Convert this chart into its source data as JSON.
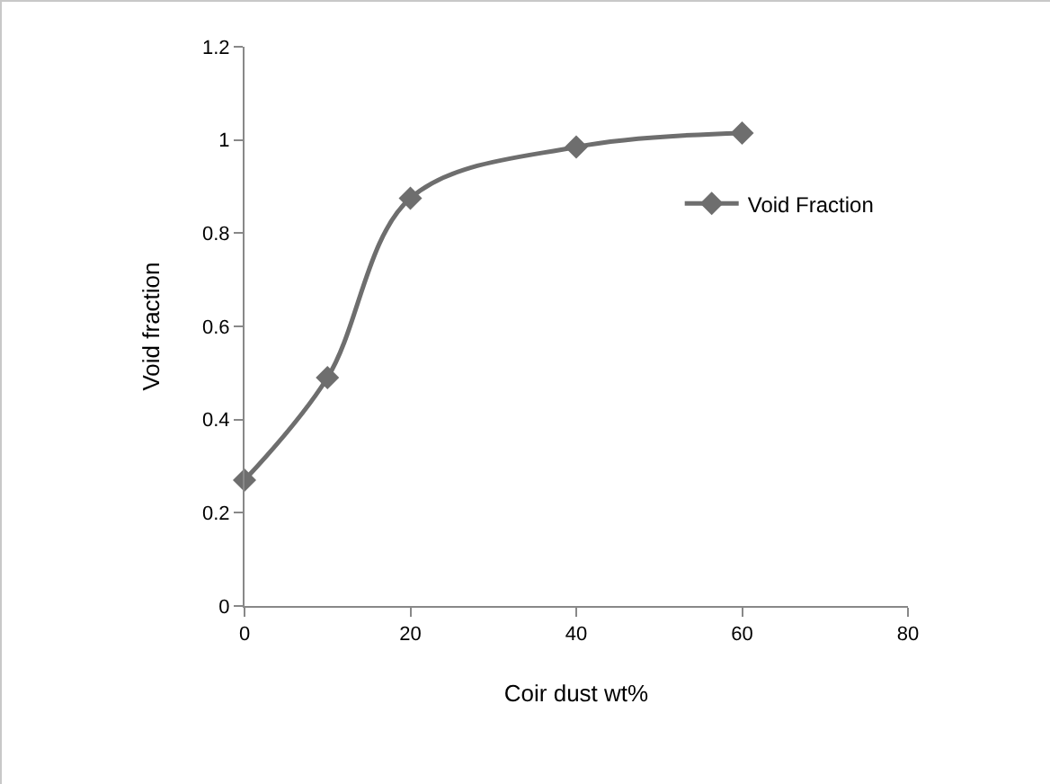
{
  "chart_data": {
    "type": "line",
    "xlabel": "Coir dust wt%",
    "ylabel": "Void fraction",
    "x": [
      0,
      10,
      20,
      40,
      60
    ],
    "series": [
      {
        "name": "Void Fraction",
        "color": "#6e6e6e",
        "values": [
          0.27,
          0.49,
          0.875,
          0.985,
          1.015
        ]
      }
    ],
    "xlim": [
      0,
      80
    ],
    "xticks": [
      0,
      20,
      40,
      60,
      80
    ],
    "ylim": [
      0,
      1.2
    ],
    "yticks": [
      0,
      0.2,
      0.4,
      0.6,
      0.8,
      1,
      1.2
    ],
    "grid": false,
    "legend": "right",
    "marker": "diamond",
    "line_style": "solid"
  }
}
